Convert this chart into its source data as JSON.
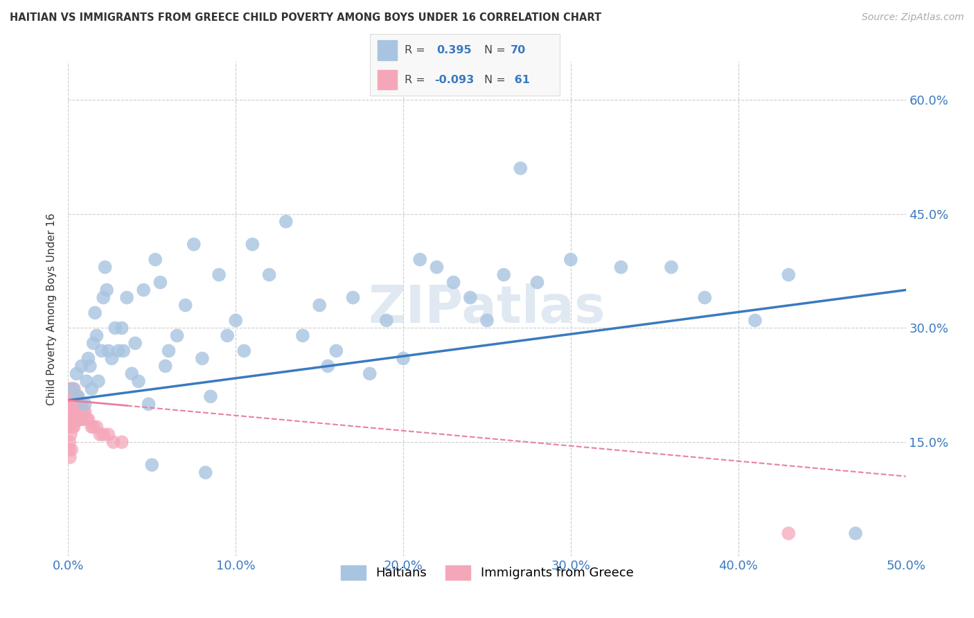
{
  "title": "HAITIAN VS IMMIGRANTS FROM GREECE CHILD POVERTY AMONG BOYS UNDER 16 CORRELATION CHART",
  "source": "Source: ZipAtlas.com",
  "ylabel": "Child Poverty Among Boys Under 16",
  "xlim": [
    0,
    50
  ],
  "ylim": [
    0,
    65
  ],
  "xticks": [
    0,
    10,
    20,
    30,
    40,
    50
  ],
  "xticklabels": [
    "0.0%",
    "10.0%",
    "20.0%",
    "30.0%",
    "40.0%",
    "50.0%"
  ],
  "yticks": [
    0,
    15,
    30,
    45,
    60
  ],
  "yticklabels": [
    "",
    "15.0%",
    "30.0%",
    "45.0%",
    "60.0%"
  ],
  "grid_color": "#cccccc",
  "background_color": "#ffffff",
  "watermark": "ZIPatlas",
  "haitian_color": "#a8c4e0",
  "greece_color": "#f4a7b9",
  "haitian_line_color": "#3a7abf",
  "greece_line_color": "#e87fa0",
  "haitian_points_x": [
    0.3,
    0.5,
    0.6,
    0.8,
    1.0,
    1.1,
    1.2,
    1.4,
    1.5,
    1.6,
    1.7,
    1.8,
    2.0,
    2.1,
    2.3,
    2.4,
    2.6,
    2.8,
    3.0,
    3.2,
    3.5,
    3.8,
    4.0,
    4.2,
    4.5,
    4.8,
    5.2,
    5.5,
    5.8,
    6.0,
    6.5,
    7.0,
    7.5,
    8.0,
    8.5,
    9.0,
    9.5,
    10.0,
    10.5,
    11.0,
    12.0,
    13.0,
    14.0,
    15.0,
    15.5,
    16.0,
    17.0,
    18.0,
    19.0,
    20.0,
    21.0,
    22.0,
    23.0,
    24.0,
    25.0,
    26.0,
    27.0,
    28.0,
    30.0,
    33.0,
    36.0,
    38.0,
    41.0,
    43.0,
    47.0,
    1.3,
    2.2,
    3.3,
    5.0,
    8.2
  ],
  "haitian_points_y": [
    22,
    24,
    21,
    25,
    20,
    23,
    26,
    22,
    28,
    32,
    29,
    23,
    27,
    34,
    35,
    27,
    26,
    30,
    27,
    30,
    34,
    24,
    28,
    23,
    35,
    20,
    39,
    36,
    25,
    27,
    29,
    33,
    41,
    26,
    21,
    37,
    29,
    31,
    27,
    41,
    37,
    44,
    29,
    33,
    25,
    27,
    34,
    24,
    31,
    26,
    39,
    38,
    36,
    34,
    31,
    37,
    51,
    36,
    39,
    38,
    38,
    34,
    31,
    37,
    3,
    25,
    38,
    27,
    12,
    11
  ],
  "greece_points_x": [
    0.05,
    0.05,
    0.05,
    0.07,
    0.08,
    0.08,
    0.1,
    0.1,
    0.1,
    0.1,
    0.12,
    0.13,
    0.15,
    0.15,
    0.15,
    0.17,
    0.18,
    0.2,
    0.2,
    0.2,
    0.22,
    0.23,
    0.25,
    0.25,
    0.27,
    0.28,
    0.3,
    0.3,
    0.32,
    0.33,
    0.35,
    0.35,
    0.37,
    0.38,
    0.4,
    0.42,
    0.45,
    0.47,
    0.5,
    0.52,
    0.55,
    0.58,
    0.6,
    0.65,
    0.7,
    0.75,
    0.8,
    0.85,
    0.9,
    1.0,
    1.1,
    1.2,
    1.4,
    1.5,
    1.7,
    1.9,
    2.1,
    2.4,
    2.7,
    3.2,
    43.0
  ],
  "greece_points_y": [
    20,
    17,
    14,
    22,
    19,
    15,
    21,
    19,
    17,
    13,
    21,
    18,
    21,
    19,
    16,
    22,
    19,
    21,
    18,
    14,
    21,
    18,
    21,
    18,
    21,
    17,
    21,
    18,
    20,
    17,
    22,
    19,
    21,
    18,
    20,
    18,
    21,
    19,
    21,
    19,
    21,
    18,
    20,
    18,
    20,
    18,
    20,
    18,
    19,
    19,
    18,
    18,
    17,
    17,
    17,
    16,
    16,
    16,
    15,
    15,
    3
  ],
  "haitian_line_x0": 0,
  "haitian_line_y0": 20.5,
  "haitian_line_x1": 50,
  "haitian_line_y1": 35.0,
  "greece_line_solid_x0": 0,
  "greece_line_solid_y0": 20.5,
  "greece_line_solid_x1": 3.5,
  "greece_line_solid_y1": 19.8,
  "greece_line_dash_x0": 3.5,
  "greece_line_dash_y0": 19.8,
  "greece_line_dash_x1": 50,
  "greece_line_dash_y1": 10.5
}
